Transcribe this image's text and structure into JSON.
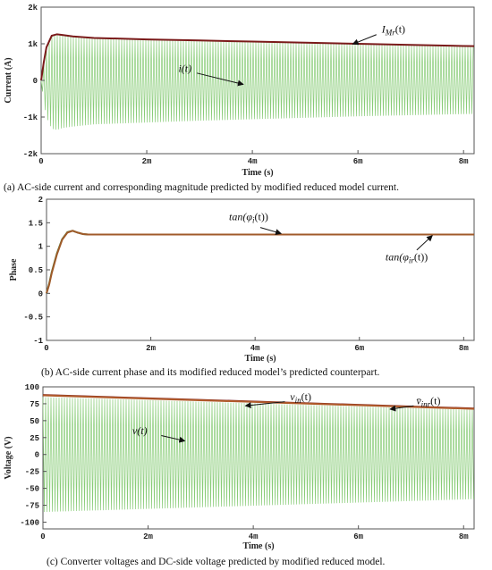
{
  "chart_data": [
    {
      "type": "line",
      "caption": "(a) AC-side current and corresponding magnitude predicted by modified reduced model current.",
      "xlabel": "Time (s)",
      "ylabel": "Current (A)",
      "xlim": [
        0,
        0.0082
      ],
      "ylim": [
        -2000,
        2000
      ],
      "x_ticks": [
        {
          "v": 0,
          "label": "0"
        },
        {
          "v": 0.002,
          "label": "2m"
        },
        {
          "v": 0.004,
          "label": "4m"
        },
        {
          "v": 0.006,
          "label": "6m"
        },
        {
          "v": 0.008,
          "label": "8m"
        }
      ],
      "y_ticks": [
        {
          "v": 2000,
          "label": "2k"
        },
        {
          "v": 1000,
          "label": "1k"
        },
        {
          "v": 0,
          "label": "0"
        },
        {
          "v": -1000,
          "label": "-1k"
        },
        {
          "v": -2000,
          "label": "-2k"
        }
      ],
      "series": [
        {
          "name": "i(t)",
          "kind": "oscillation",
          "color": "#88cc77",
          "envelope_x": [
            0,
            5e-05,
            0.0001,
            0.0002,
            0.0003,
            0.0004,
            0.0006,
            0.001,
            0.002,
            0.003,
            0.004,
            0.005,
            0.006,
            0.007,
            0.008,
            0.0082
          ],
          "envelope_upper": [
            0,
            400,
            800,
            1200,
            1250,
            1230,
            1190,
            1140,
            1100,
            1070,
            1040,
            1010,
            980,
            950,
            930,
            925
          ],
          "envelope_lower": [
            0,
            -600,
            -1000,
            -1320,
            -1350,
            -1300,
            -1260,
            -1200,
            -1150,
            -1100,
            -1060,
            -1020,
            -980,
            -950,
            -920,
            -915
          ]
        },
        {
          "name": "I_Mr(t)",
          "kind": "line",
          "color": "#7a1a1a",
          "x": [
            0,
            5e-05,
            0.0001,
            0.0002,
            0.0003,
            0.0004,
            0.0006,
            0.001,
            0.002,
            0.003,
            0.004,
            0.005,
            0.006,
            0.007,
            0.008,
            0.0082
          ],
          "y": [
            0,
            500,
            900,
            1220,
            1260,
            1240,
            1200,
            1160,
            1120,
            1090,
            1060,
            1030,
            1000,
            970,
            940,
            935
          ]
        }
      ],
      "annotations": [
        {
          "text": "I",
          "sub": "Mr",
          "suffix": "(t)",
          "x": 0.00645,
          "y": 1300,
          "ax": 0.00635,
          "ay": 1250,
          "tx": 0.0059,
          "ty": 990
        },
        {
          "text": "i(t)",
          "x": 0.0026,
          "y": 230,
          "ax": 0.00295,
          "ay": 200,
          "tx": 0.00383,
          "ty": -110
        }
      ]
    },
    {
      "type": "line",
      "caption": "(b) AC-side current phase and its modified reduced model’s predicted counterpart.",
      "xlabel": "Time (s)",
      "ylabel": "Phase",
      "xlim": [
        0,
        0.0082
      ],
      "ylim": [
        -1,
        2
      ],
      "x_ticks": [
        {
          "v": 0,
          "label": "0"
        },
        {
          "v": 0.002,
          "label": "2m"
        },
        {
          "v": 0.004,
          "label": "4m"
        },
        {
          "v": 0.006,
          "label": "6m"
        },
        {
          "v": 0.008,
          "label": "8m"
        }
      ],
      "y_ticks": [
        {
          "v": 2,
          "label": "2"
        },
        {
          "v": 1.5,
          "label": "1.5"
        },
        {
          "v": 1,
          "label": "1"
        },
        {
          "v": 0.5,
          "label": "0.5"
        },
        {
          "v": 0,
          "label": "0"
        },
        {
          "v": -0.5,
          "label": "-0.5"
        },
        {
          "v": -1,
          "label": "-1"
        }
      ],
      "series": [
        {
          "name": "tan(φ_i(t))",
          "kind": "line",
          "color": "#4d7a2e",
          "x": [
            0,
            5e-05,
            0.0001,
            0.0002,
            0.0003,
            0.0004,
            0.0005,
            0.0006,
            0.0007,
            0.0008,
            0.001,
            0.002,
            0.004,
            0.006,
            0.008,
            0.0082
          ],
          "y": [
            0,
            0.2,
            0.45,
            0.85,
            1.15,
            1.3,
            1.33,
            1.29,
            1.26,
            1.25,
            1.25,
            1.25,
            1.25,
            1.25,
            1.25,
            1.25
          ]
        },
        {
          "name": "tan(φ_ir(t))",
          "kind": "line",
          "color": "#a05a2a",
          "x": [
            0,
            5e-05,
            0.0001,
            0.0002,
            0.0003,
            0.0004,
            0.0005,
            0.0006,
            0.0007,
            0.0008,
            0.001,
            0.002,
            0.004,
            0.006,
            0.008,
            0.0082
          ],
          "y": [
            0,
            0.18,
            0.43,
            0.83,
            1.14,
            1.29,
            1.33,
            1.29,
            1.26,
            1.25,
            1.25,
            1.25,
            1.25,
            1.25,
            1.25,
            1.25
          ]
        }
      ],
      "annotations": [
        {
          "text": "tan(φ",
          "sub": "i",
          "suffix": "(t))",
          "x": 0.0035,
          "y": 1.55,
          "ax": 0.0041,
          "ay": 1.4,
          "tx": 0.0045,
          "ty": 1.27
        },
        {
          "text": "tan(φ",
          "sub": "ir",
          "suffix": "(t))",
          "x": 0.0065,
          "y": 0.7,
          "ax": 0.0071,
          "ay": 0.92,
          "tx": 0.0074,
          "ty": 1.23
        }
      ]
    },
    {
      "type": "line",
      "caption": "(c) Converter voltages and DC-side voltage predicted by modified reduced model.",
      "xlabel": "Time (s)",
      "ylabel": "Voltage (V)",
      "xlim": [
        0,
        0.0082
      ],
      "ylim": [
        -110,
        100
      ],
      "x_ticks": [
        {
          "v": 0,
          "label": "0"
        },
        {
          "v": 0.002,
          "label": "2m"
        },
        {
          "v": 0.004,
          "label": "4m"
        },
        {
          "v": 0.006,
          "label": "6m"
        },
        {
          "v": 0.008,
          "label": "8m"
        }
      ],
      "y_ticks": [
        {
          "v": 100,
          "label": "100"
        },
        {
          "v": 75,
          "label": "75"
        },
        {
          "v": 50,
          "label": "50"
        },
        {
          "v": 25,
          "label": "25"
        },
        {
          "v": 0,
          "label": "0"
        },
        {
          "v": -25,
          "label": "-25"
        },
        {
          "v": -50,
          "label": "-50"
        },
        {
          "v": -75,
          "label": "-75"
        },
        {
          "v": -100,
          "label": "-100"
        }
      ],
      "series": [
        {
          "name": "v(t)",
          "kind": "oscillation",
          "color": "#88cc77",
          "envelope_x": [
            0,
            0.0082
          ],
          "envelope_upper": [
            85,
            66
          ],
          "envelope_lower": [
            -85,
            -66
          ]
        },
        {
          "name": "v_in(t)",
          "kind": "line",
          "color": "#7a1a1a",
          "x": [
            0,
            0.0082
          ],
          "y": [
            88,
            68
          ]
        },
        {
          "name": "v̄_inr(t)",
          "kind": "line",
          "color": "#b05a2a",
          "x": [
            0,
            0.0082
          ],
          "y": [
            87.5,
            67.5
          ]
        }
      ],
      "annotations": [
        {
          "text": "v",
          "sub": "in",
          "suffix": "(t)",
          "x": 0.0047,
          "y": 80,
          "ax": 0.0046,
          "ay": 78,
          "tx": 0.00385,
          "ty": 72
        },
        {
          "text": "v̄",
          "sub": "inr",
          "suffix": "(t)",
          "x": 0.0071,
          "y": 74,
          "ax": 0.00705,
          "ay": 72,
          "tx": 0.0066,
          "ty": 67
        },
        {
          "text": "v(t)",
          "x": 0.0017,
          "y": 30,
          "ax": 0.00225,
          "ay": 28,
          "tx": 0.0027,
          "ty": 20
        }
      ]
    }
  ]
}
